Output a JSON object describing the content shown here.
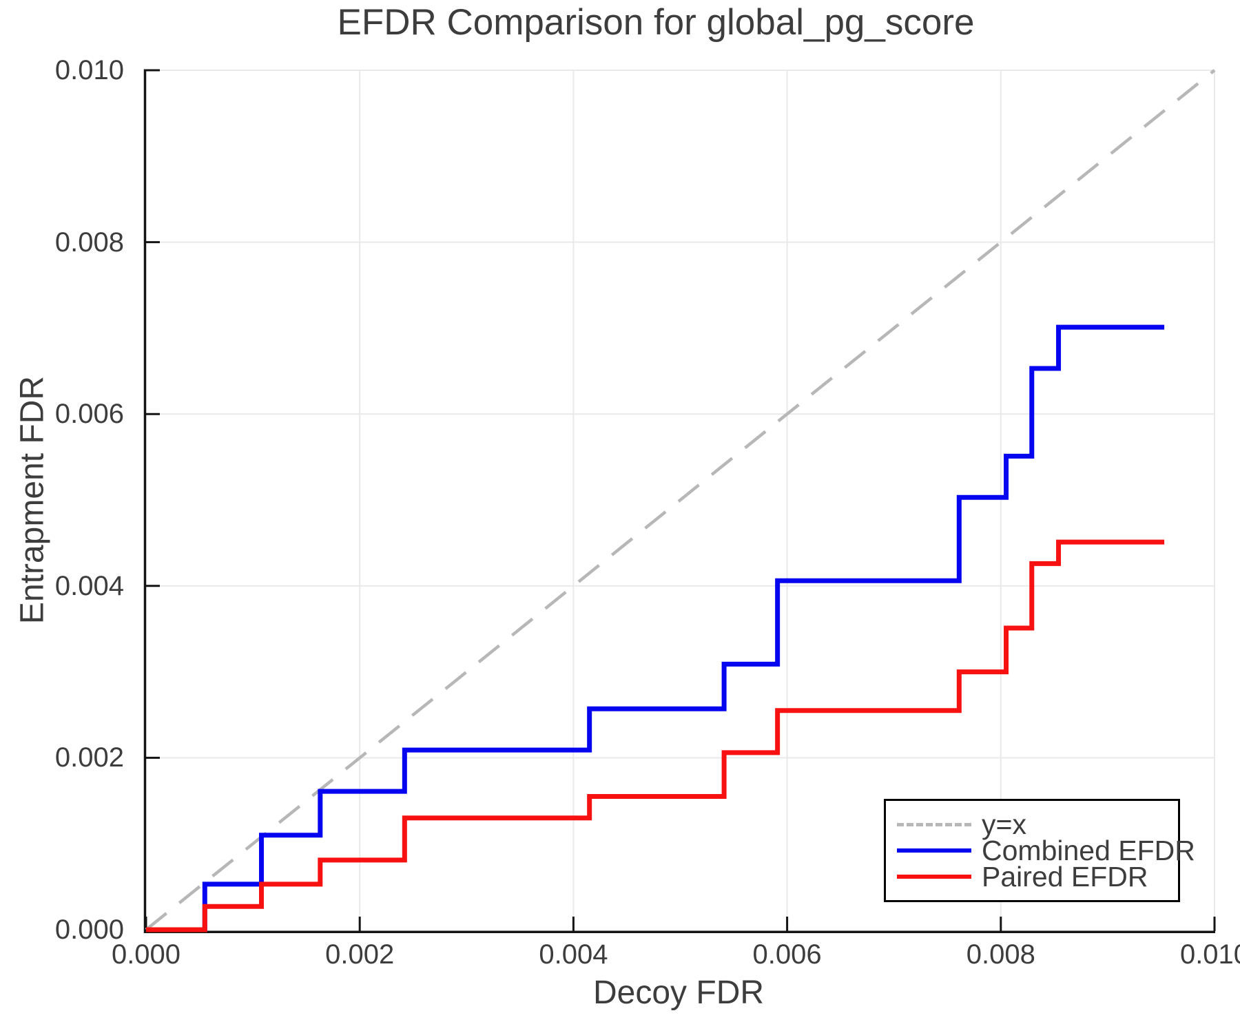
{
  "chart_data": {
    "type": "line",
    "title": "EFDR Comparison for global_pg_score",
    "xlabel": "Decoy FDR",
    "ylabel": "Entrapment FDR",
    "xlim": [
      0.0,
      0.01
    ],
    "ylim": [
      0.0,
      0.01
    ],
    "grid": true,
    "legend_position": "bottom-right",
    "x_tick_values": [
      0.0,
      0.002,
      0.004,
      0.006,
      0.008,
      0.01
    ],
    "x_tick_labels": [
      "0.000",
      "0.002",
      "0.004",
      "0.006",
      "0.008",
      "0.010"
    ],
    "y_tick_values": [
      0.0,
      0.002,
      0.004,
      0.006,
      0.008,
      0.01
    ],
    "y_tick_labels": [
      "0.000",
      "0.002",
      "0.004",
      "0.006",
      "0.008",
      "0.010"
    ],
    "series": [
      {
        "name": "y=x",
        "type": "line",
        "style": "dashed",
        "color": "#b7b7b7",
        "x": [
          0.0,
          0.01
        ],
        "y": [
          0.0,
          0.01
        ]
      },
      {
        "name": "Combined EFDR",
        "type": "step",
        "style": "solid",
        "color": "#0505f0",
        "x_start": 0.0,
        "y_start": 0.0,
        "x_end": 0.00953,
        "step_x": [
          0.00055,
          0.00108,
          0.00163,
          0.00242,
          0.00415,
          0.00541,
          0.00591,
          0.00761,
          0.00805,
          0.00829,
          0.00854
        ],
        "step_y": [
          0.00053,
          0.0011,
          0.00161,
          0.00209,
          0.00257,
          0.00309,
          0.00406,
          0.00503,
          0.00551,
          0.00653,
          0.00701
        ]
      },
      {
        "name": "Paired EFDR",
        "type": "step",
        "style": "solid",
        "color": "#f71111",
        "x_start": 0.0,
        "y_start": 0.0,
        "x_end": 0.00953,
        "step_x": [
          0.00055,
          0.00108,
          0.00163,
          0.00242,
          0.00415,
          0.00541,
          0.00591,
          0.00761,
          0.00805,
          0.00829,
          0.00854
        ],
        "step_y": [
          0.00027,
          0.00053,
          0.00081,
          0.0013,
          0.00155,
          0.00206,
          0.00255,
          0.003,
          0.00351,
          0.00426,
          0.00451
        ]
      }
    ]
  },
  "style_colors": {
    "axis": "#141414",
    "grid": "#e9e9e9",
    "text": "#3d3d3d"
  }
}
